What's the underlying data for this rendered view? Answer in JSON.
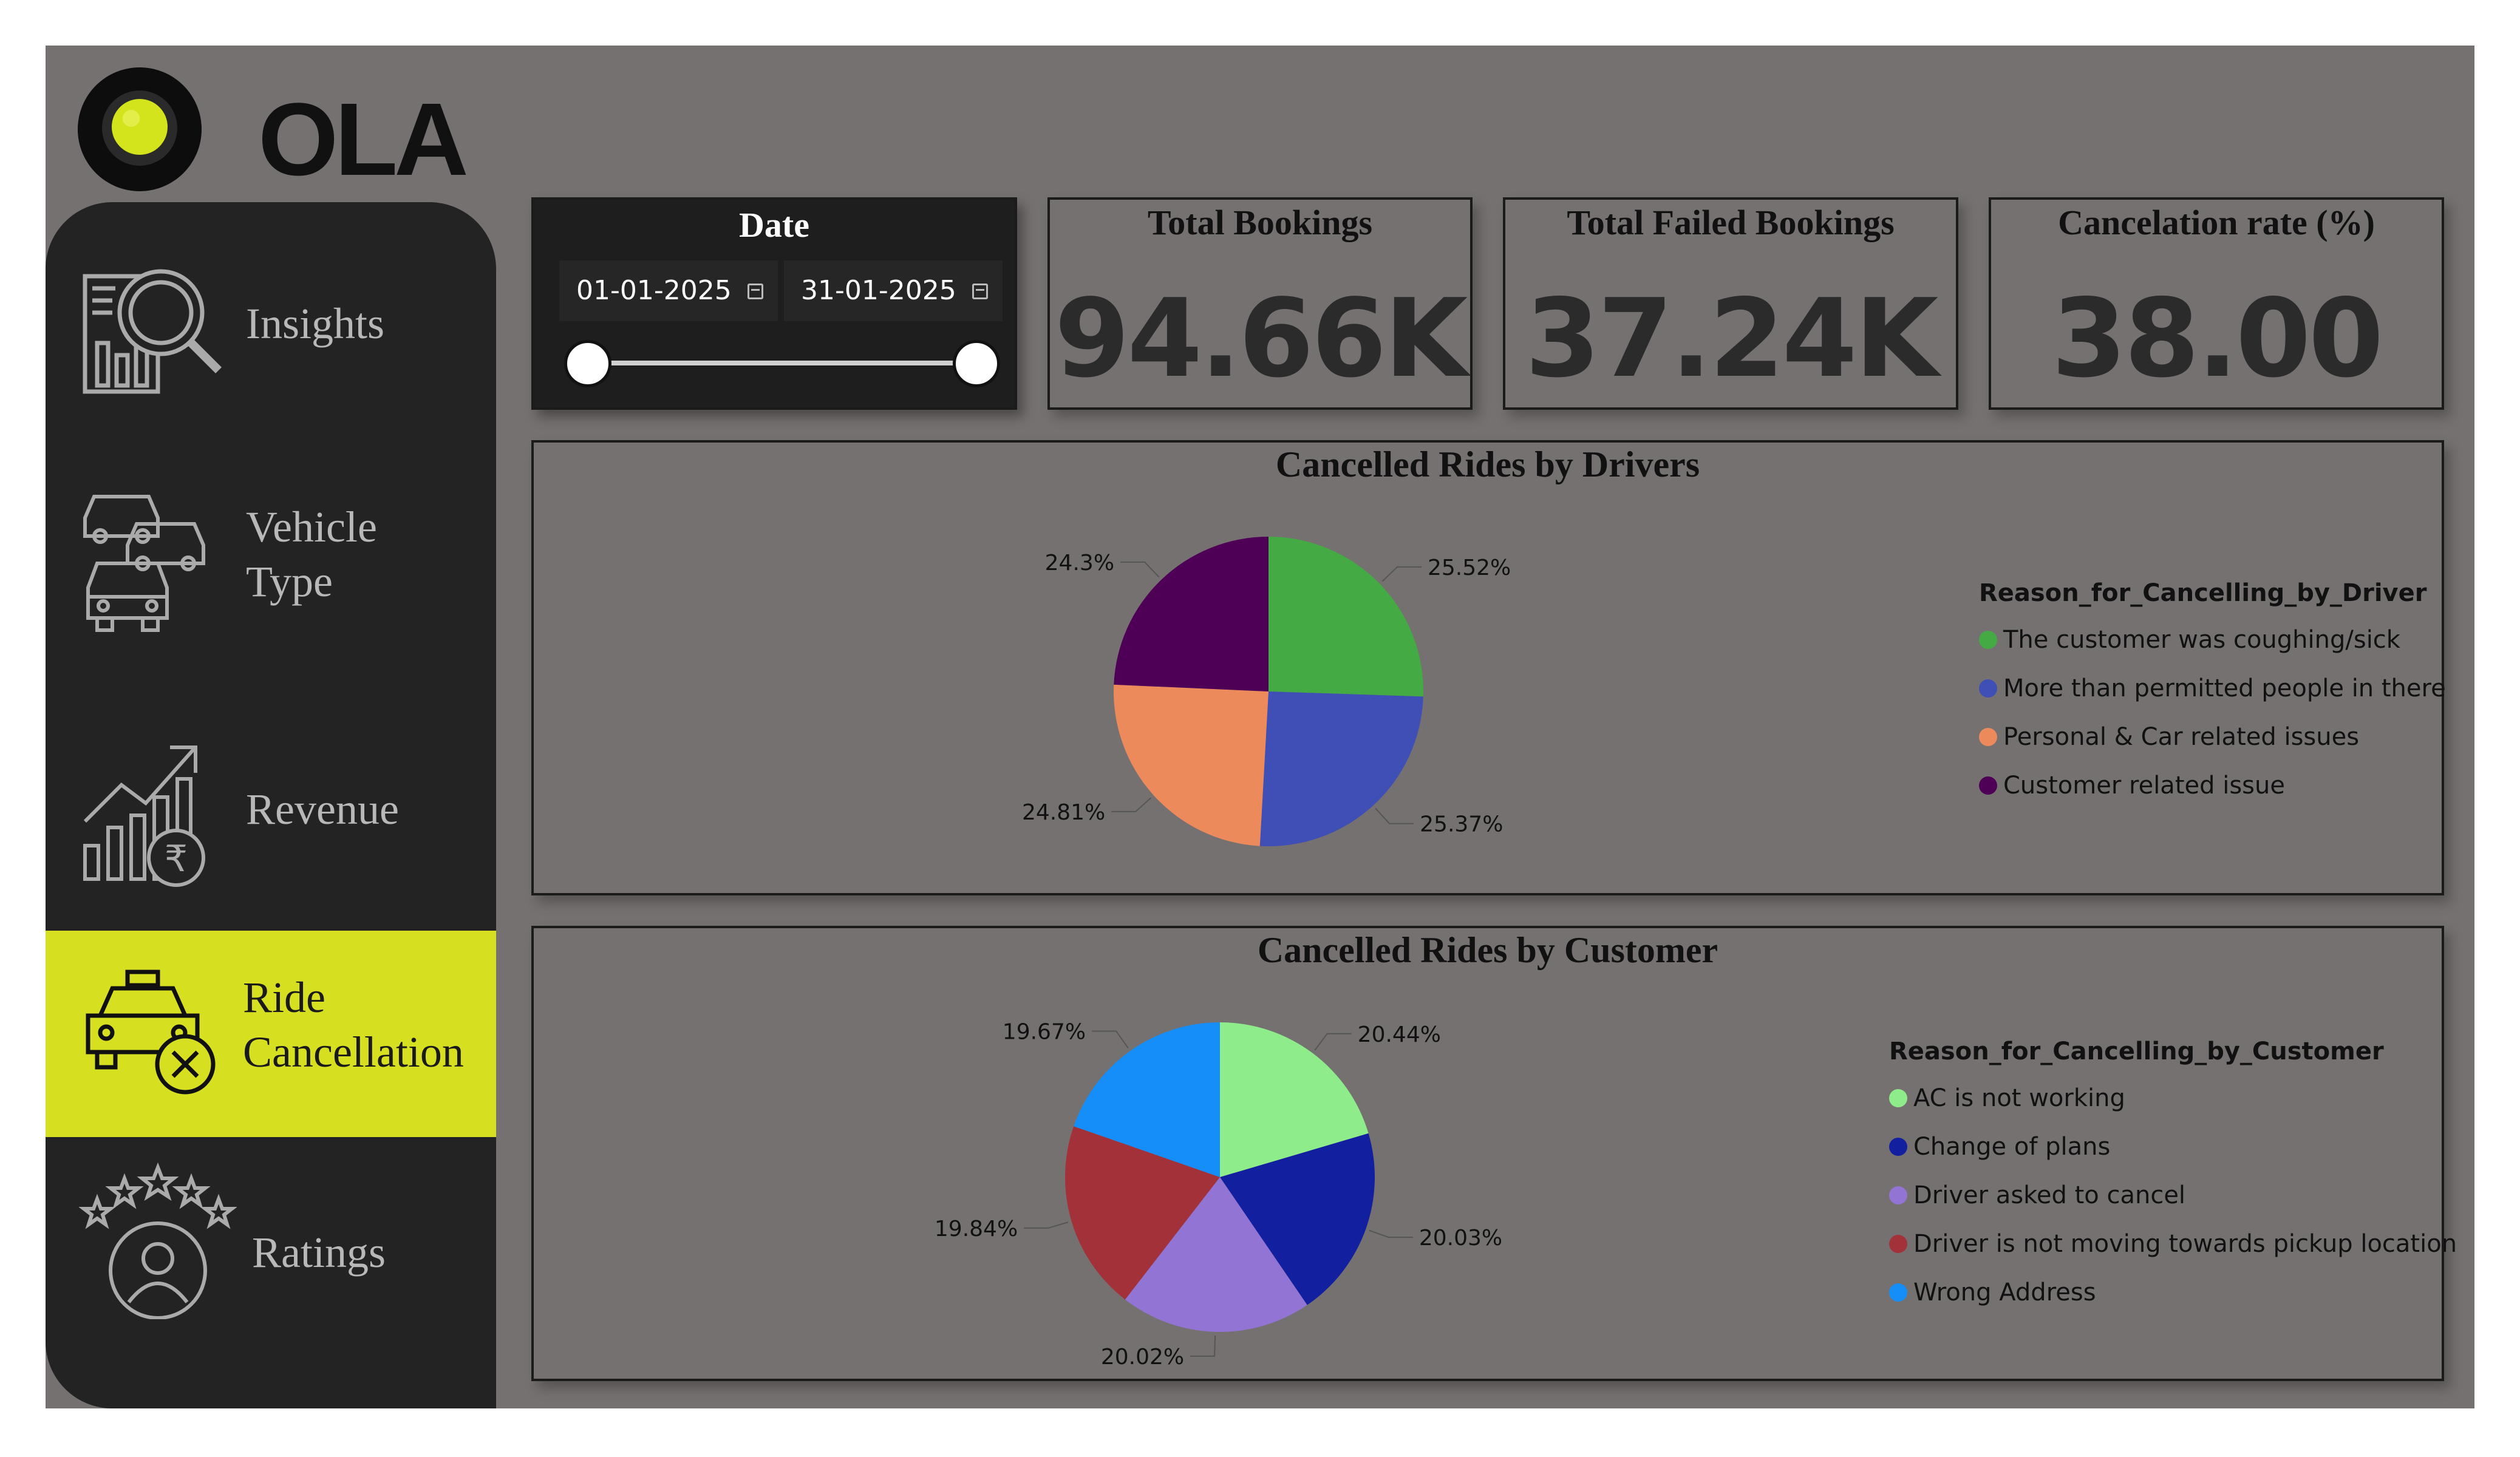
{
  "brand": {
    "logo_text": "OLA",
    "accent": "#d6e021"
  },
  "nav": [
    {
      "key": "insights",
      "icon": "insights-icon",
      "lines": [
        "Insights"
      ],
      "active": false
    },
    {
      "key": "vehicle-type",
      "icon": "vehicles-icon",
      "lines": [
        "Vehicle",
        "Type"
      ],
      "active": false
    },
    {
      "key": "revenue",
      "icon": "revenue-icon",
      "lines": [
        "Revenue"
      ],
      "active": false
    },
    {
      "key": "ride-cancellation",
      "icon": "cancelled-taxi-icon",
      "lines": [
        "Ride",
        "Cancellation"
      ],
      "active": true
    },
    {
      "key": "ratings",
      "icon": "ratings-icon",
      "lines": [
        "Ratings"
      ],
      "active": false
    }
  ],
  "date_filter": {
    "title": "Date",
    "start": "01-01-2025",
    "end": "31-01-2025"
  },
  "kpis": [
    {
      "title": "Total Bookings",
      "value": "94.66K"
    },
    {
      "title": "Total Failed Bookings",
      "value": "37.24K"
    },
    {
      "title": "Cancelation rate (%)",
      "value": "38.00"
    }
  ],
  "chart_data": [
    {
      "type": "pie",
      "title": "Cancelled Rides by Drivers",
      "legend_title": "Reason_for_Cancelling_by_Driver",
      "legend_position": "right",
      "slices": [
        {
          "label": "The customer was coughing/sick",
          "value": 25.52,
          "display": "25.52%",
          "color": "#44aa44"
        },
        {
          "label": "More than permitted people in there",
          "value": 25.37,
          "display": "25.37%",
          "color": "#3f4fb5"
        },
        {
          "label": "Personal & Car related issues",
          "value": 24.81,
          "display": "24.81%",
          "color": "#ed8a5c"
        },
        {
          "label": "Customer related issue",
          "value": 24.3,
          "display": "24.3%",
          "color": "#4e0056"
        }
      ]
    },
    {
      "type": "pie",
      "title": "Cancelled Rides by Customer",
      "legend_title": "Reason_for_Cancelling_by_Customer",
      "legend_position": "right",
      "slices": [
        {
          "label": "AC is not working",
          "value": 20.44,
          "display": "20.44%",
          "color": "#8eec8a"
        },
        {
          "label": "Change of plans",
          "value": 20.03,
          "display": "20.03%",
          "color": "#1220a0"
        },
        {
          "label": "Driver asked to cancel",
          "value": 20.02,
          "display": "20.02%",
          "color": "#9274d4"
        },
        {
          "label": "Driver is not moving towards pickup location",
          "value": 19.84,
          "display": "19.84%",
          "color": "#a3313a"
        },
        {
          "label": "Wrong Address",
          "value": 19.67,
          "display": "19.67%",
          "color": "#158ef9"
        }
      ]
    }
  ]
}
